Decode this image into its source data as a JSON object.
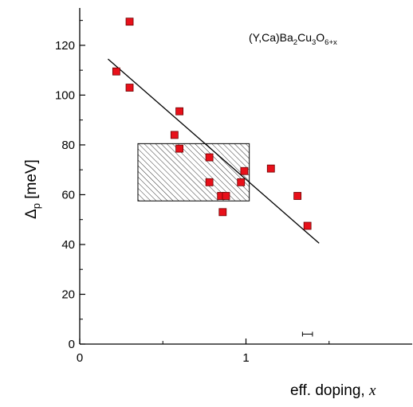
{
  "chart_data": {
    "type": "scatter",
    "title": "",
    "annotation": {
      "formula_parts": [
        {
          "text": "(Y,Ca)Ba",
          "sub": "2"
        },
        {
          "text": "Cu",
          "sub": "3"
        },
        {
          "text": "O",
          "sub": "6+x"
        }
      ]
    },
    "xlabel": {
      "text": "eff. doping, ",
      "var": "x"
    },
    "ylabel": {
      "symbol": "Δ",
      "sub": "p",
      "unit": " [meV]"
    },
    "xlim": [
      0,
      2.0
    ],
    "ylim": [
      0,
      135
    ],
    "x_ticks": [
      {
        "value": 0,
        "label": "0"
      },
      {
        "value": 1,
        "label": "1"
      }
    ],
    "y_ticks": [
      {
        "value": 0,
        "label": "0"
      },
      {
        "value": 20,
        "label": "20"
      },
      {
        "value": 40,
        "label": "40"
      },
      {
        "value": 60,
        "label": "60"
      },
      {
        "value": 80,
        "label": "80"
      },
      {
        "value": 100,
        "label": "100"
      },
      {
        "value": 120,
        "label": "120"
      }
    ],
    "grid": false,
    "points": [
      {
        "x": 0.3,
        "y": 129.5
      },
      {
        "x": 0.22,
        "y": 109.5
      },
      {
        "x": 0.3,
        "y": 103.0
      },
      {
        "x": 0.6,
        "y": 93.5
      },
      {
        "x": 0.57,
        "y": 84.0
      },
      {
        "x": 0.6,
        "y": 78.5
      },
      {
        "x": 0.78,
        "y": 75.0
      },
      {
        "x": 0.78,
        "y": 65.0
      },
      {
        "x": 0.85,
        "y": 59.5
      },
      {
        "x": 0.88,
        "y": 59.5
      },
      {
        "x": 0.86,
        "y": 53.0
      },
      {
        "x": 0.97,
        "y": 65.0
      },
      {
        "x": 0.99,
        "y": 69.5
      },
      {
        "x": 1.15,
        "y": 70.5
      },
      {
        "x": 1.31,
        "y": 59.5
      },
      {
        "x": 1.37,
        "y": 47.5
      }
    ],
    "fit_line": {
      "x1": 0.17,
      "y1": 114.5,
      "x2": 1.44,
      "y2": 40.5
    },
    "shaded_region": {
      "x1": 0.35,
      "x2": 1.02,
      "y1": 57.5,
      "y2": 80.5
    },
    "error_bar": {
      "x": 1.37,
      "y": 4.0,
      "xerr": 0.03
    },
    "marker_color": "#e8101a",
    "marker_edge": "#6a0000"
  }
}
